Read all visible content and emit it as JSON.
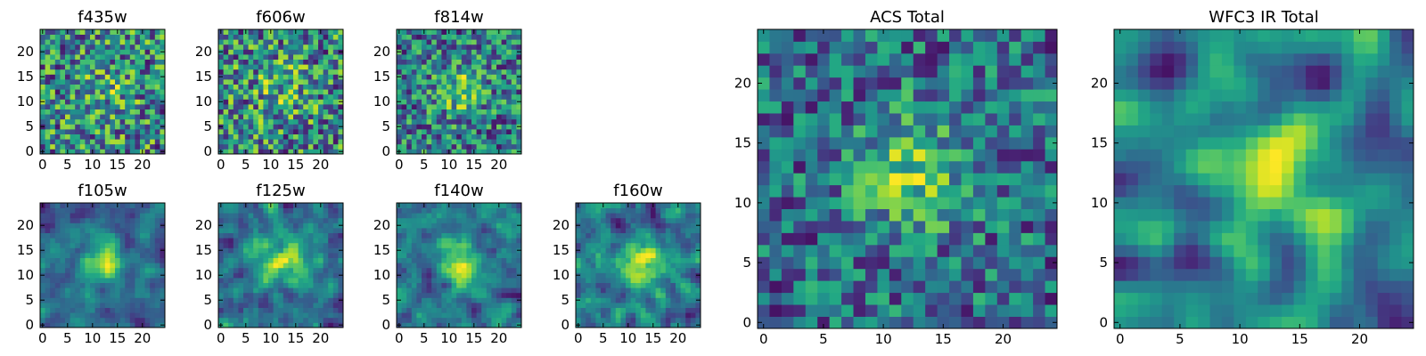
{
  "chart_data": [
    {
      "type": "heatmap",
      "title": "f435w",
      "size": 25,
      "seed": 11,
      "blob": 0.15,
      "sigma": 4,
      "smooth": 0,
      "contrast": 0.85,
      "xticks": [
        "0",
        "5",
        "10",
        "15",
        "20"
      ],
      "yticks": [
        "0",
        "5",
        "10",
        "15",
        "20"
      ],
      "xlim": [
        0,
        24
      ],
      "ylim": [
        0,
        24
      ],
      "colormap": "viridis"
    },
    {
      "type": "heatmap",
      "title": "f606w",
      "size": 25,
      "seed": 23,
      "blob": 0.15,
      "sigma": 4,
      "smooth": 0,
      "contrast": 0.9,
      "xticks": [
        "0",
        "5",
        "10",
        "15",
        "20"
      ],
      "yticks": [
        "0",
        "5",
        "10",
        "15",
        "20"
      ],
      "xlim": [
        0,
        24
      ],
      "ylim": [
        0,
        24
      ],
      "colormap": "viridis"
    },
    {
      "type": "heatmap",
      "title": "f814w",
      "size": 25,
      "seed": 37,
      "blob": 0.35,
      "sigma": 3.5,
      "smooth": 0,
      "contrast": 0.85,
      "xticks": [
        "0",
        "5",
        "10",
        "15",
        "20"
      ],
      "yticks": [
        "0",
        "5",
        "10",
        "15",
        "20"
      ],
      "xlim": [
        0,
        24
      ],
      "ylim": [
        0,
        24
      ],
      "colormap": "viridis"
    },
    {
      "type": "heatmap",
      "title": "f105w",
      "size": 25,
      "seed": 41,
      "blob": 0.7,
      "sigma": 3,
      "smooth": 1,
      "contrast": 0.8,
      "xticks": [
        "0",
        "5",
        "10",
        "15",
        "20"
      ],
      "yticks": [
        "0",
        "5",
        "10",
        "15",
        "20"
      ],
      "xlim": [
        0,
        24
      ],
      "ylim": [
        0,
        24
      ],
      "colormap": "viridis"
    },
    {
      "type": "heatmap",
      "title": "f125w",
      "size": 25,
      "seed": 53,
      "blob": 0.55,
      "sigma": 3.5,
      "smooth": 1,
      "contrast": 0.85,
      "xticks": [
        "0",
        "5",
        "10",
        "15",
        "20"
      ],
      "yticks": [
        "0",
        "5",
        "10",
        "15",
        "20"
      ],
      "xlim": [
        0,
        24
      ],
      "ylim": [
        0,
        24
      ],
      "colormap": "viridis"
    },
    {
      "type": "heatmap",
      "title": "f140w",
      "size": 25,
      "seed": 67,
      "blob": 0.6,
      "sigma": 3,
      "smooth": 1,
      "contrast": 0.85,
      "xticks": [
        "0",
        "5",
        "10",
        "15",
        "20"
      ],
      "yticks": [
        "0",
        "5",
        "10",
        "15",
        "20"
      ],
      "xlim": [
        0,
        24
      ],
      "ylim": [
        0,
        24
      ],
      "colormap": "viridis"
    },
    {
      "type": "heatmap",
      "title": "f160w",
      "size": 25,
      "seed": 79,
      "blob": 0.75,
      "sigma": 3.2,
      "smooth": 1,
      "contrast": 0.85,
      "xticks": [
        "0",
        "5",
        "10",
        "15",
        "20"
      ],
      "yticks": [
        "0",
        "5",
        "10",
        "15",
        "20"
      ],
      "xlim": [
        0,
        24
      ],
      "ylim": [
        0,
        24
      ],
      "colormap": "viridis"
    },
    {
      "type": "heatmap",
      "title": "ACS Total",
      "size": 25,
      "seed": 97,
      "blob": 0.45,
      "sigma": 3.5,
      "smooth": 0,
      "contrast": 0.75,
      "xticks": [
        "0",
        "5",
        "10",
        "15",
        "20"
      ],
      "yticks": [
        "0",
        "5",
        "10",
        "15",
        "20"
      ],
      "xlim": [
        0,
        24
      ],
      "ylim": [
        0,
        24
      ],
      "colormap": "viridis"
    },
    {
      "type": "heatmap",
      "title": "WFC3 IR Total",
      "size": 25,
      "seed": 113,
      "blob": 0.8,
      "sigma": 3.2,
      "smooth": 2,
      "contrast": 0.8,
      "xticks": [
        "0",
        "5",
        "10",
        "15",
        "20"
      ],
      "yticks": [
        "0",
        "5",
        "10",
        "15",
        "20"
      ],
      "xlim": [
        0,
        24
      ],
      "ylim": [
        0,
        24
      ],
      "colormap": "viridis"
    }
  ]
}
